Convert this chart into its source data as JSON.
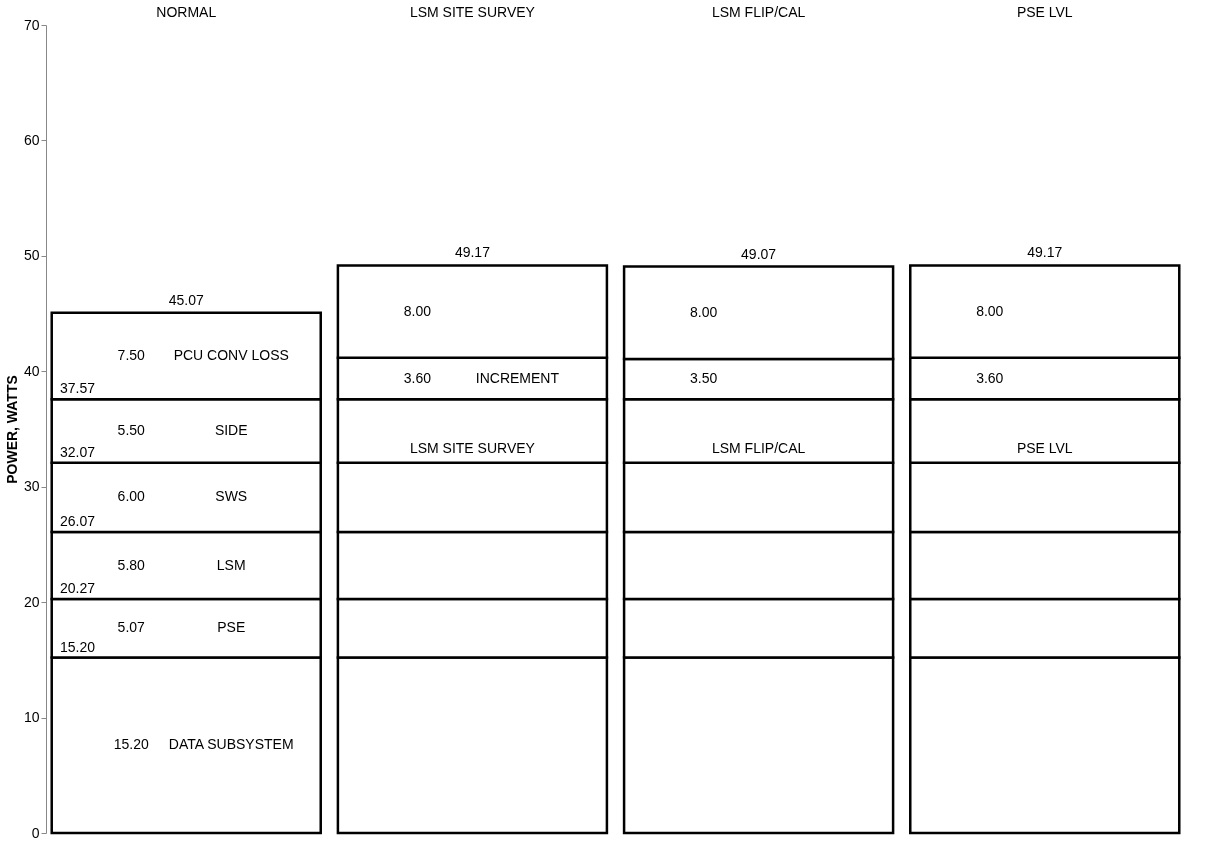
{
  "chart_data": {
    "type": "bar",
    "stacked": true,
    "ylabel": "POWER, WATTS",
    "categories": [
      "NORMAL",
      "LSM SITE SURVEY",
      "LSM FLIP/CAL",
      "PSE LVL"
    ],
    "series": [
      {
        "name": "DATA SUBSYSTEM",
        "color": "#ffffff",
        "values": [
          15.2,
          15.2,
          15.2,
          15.2
        ],
        "value_labels": [
          "15.20",
          null,
          null,
          null
        ]
      },
      {
        "name": "PSE",
        "color": "#ffffff",
        "values": [
          5.07,
          5.07,
          5.07,
          5.07
        ],
        "value_labels": [
          "5.07",
          null,
          null,
          null
        ]
      },
      {
        "name": "LSM",
        "color": "#ffffff",
        "values": [
          5.8,
          5.8,
          5.8,
          5.8
        ],
        "value_labels": [
          "5.80",
          null,
          null,
          null
        ]
      },
      {
        "name": "SWS",
        "color": "#ffffff",
        "values": [
          6.0,
          6.0,
          6.0,
          6.0
        ],
        "value_labels": [
          "6.00",
          null,
          null,
          null
        ]
      },
      {
        "name": "SIDE",
        "color": "#ffffff",
        "values": [
          5.5,
          5.5,
          5.5,
          5.5
        ],
        "value_labels": [
          "5.50",
          null,
          null,
          null
        ]
      },
      {
        "name": "INCREMENT",
        "color": "#ffffff",
        "values": [
          null,
          3.6,
          3.5,
          3.6
        ],
        "value_labels": [
          null,
          "3.60",
          "3.50",
          "3.60"
        ]
      },
      {
        "name": "PCU CONV LOSS",
        "color": "#ffffff",
        "values": [
          7.5,
          8.0,
          8.0,
          8.0
        ],
        "value_labels": [
          "7.50",
          "8.00",
          "8.00",
          "8.00"
        ]
      }
    ],
    "totals": [
      "45.07",
      "49.17",
      "49.07",
      "49.17"
    ],
    "annotations": [
      {
        "text": "15.20",
        "y": 15.2
      },
      {
        "text": "20.27",
        "y": 20.27
      },
      {
        "text": "26.07",
        "y": 26.07
      },
      {
        "text": "32.07",
        "y": 32.07
      },
      {
        "text": "37.57",
        "y": 37.57
      },
      "LSM SITE SURVEY",
      "LSM FLIP/CAL",
      "PSE LVL"
    ],
    "ylim": [
      0,
      70
    ],
    "yticks": [
      0,
      10,
      20,
      30,
      40,
      50,
      60,
      70
    ],
    "grid": false
  }
}
